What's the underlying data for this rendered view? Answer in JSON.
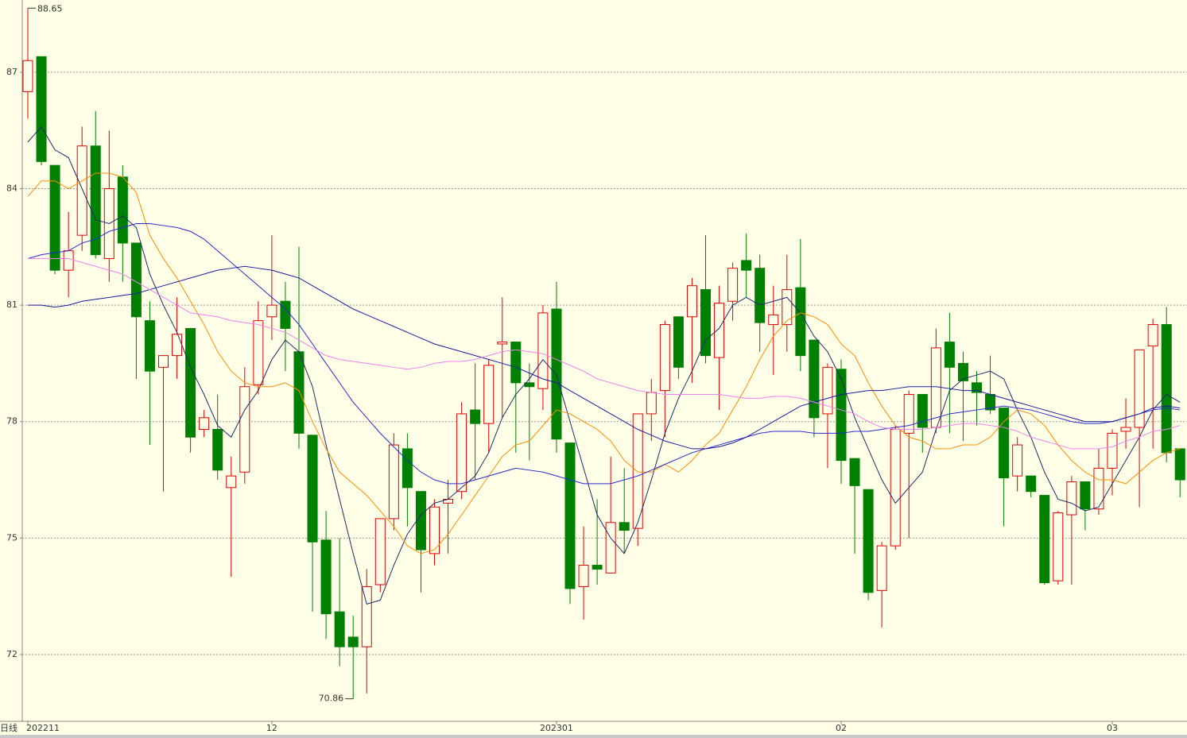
{
  "chart_data": {
    "type": "candlestick",
    "period_label": "日线",
    "categories": [
      "202211",
      null,
      null,
      null,
      null,
      null,
      null,
      null,
      null,
      null,
      null,
      null,
      null,
      null,
      null,
      null,
      null,
      null,
      "12",
      null,
      null,
      null,
      null,
      null,
      null,
      null,
      null,
      null,
      null,
      null,
      null,
      null,
      null,
      null,
      null,
      null,
      null,
      null,
      null,
      "202301",
      null,
      null,
      null,
      null,
      null,
      null,
      null,
      null,
      null,
      null,
      null,
      null,
      null,
      null,
      null,
      null,
      null,
      null,
      null,
      null,
      "02",
      null,
      null,
      null,
      null,
      null,
      null,
      null,
      null,
      null,
      null,
      null,
      null,
      null,
      null,
      null,
      null,
      null,
      null,
      null,
      "03",
      null,
      null,
      null,
      null,
      null
    ],
    "open": [
      86.5,
      87.4,
      84.6,
      81.9,
      82.8,
      85.1,
      82.2,
      84.3,
      82.6,
      80.6,
      79.4,
      79.7,
      80.4,
      77.8,
      77.8,
      76.3,
      76.7,
      78.95,
      80.7,
      81.1,
      79.8,
      77.65,
      74.95,
      73.1,
      72.45,
      72.2,
      73.8,
      75.5,
      77.3,
      76.2,
      74.6,
      75.9,
      76.2,
      78.3,
      77.95,
      80.0,
      80.05,
      79.0,
      78.85,
      80.9,
      77.45,
      73.75,
      74.3,
      74.1,
      75.4,
      75.25,
      78.2,
      78.8,
      80.7,
      80.7,
      81.4,
      79.65,
      81.1,
      82.15,
      81.95,
      80.5,
      80.5,
      81.45,
      80.1,
      78.2,
      79.35,
      77.05,
      76.25,
      73.65,
      74.8,
      77.7,
      78.7,
      77.85,
      80.05,
      79.5,
      79.0,
      78.7,
      78.35,
      76.6,
      76.6,
      76.1,
      73.9,
      75.6,
      76.45,
      75.75,
      76.8,
      77.75,
      77.85,
      79.95,
      80.5,
      77.3
    ],
    "high": [
      88.65,
      87.4,
      84.6,
      83.4,
      85.6,
      86.0,
      85.5,
      84.6,
      82.6,
      81.1,
      79.7,
      81.2,
      80.4,
      78.3,
      78.7,
      77.1,
      79.4,
      81.1,
      82.8,
      81.6,
      82.5,
      77.65,
      75.7,
      75.0,
      73.0,
      74.2,
      75.5,
      77.7,
      77.7,
      76.2,
      76.0,
      76.5,
      78.5,
      79.5,
      79.6,
      81.2,
      80.05,
      79.5,
      81.0,
      81.6,
      77.45,
      75.3,
      76.0,
      77.1,
      76.8,
      78.2,
      79.1,
      80.6,
      80.7,
      81.7,
      82.8,
      81.5,
      82.1,
      82.85,
      82.3,
      81.5,
      82.3,
      82.7,
      80.1,
      79.5,
      79.6,
      77.05,
      76.25,
      74.9,
      77.9,
      78.8,
      78.7,
      80.4,
      80.8,
      79.8,
      79.3,
      79.7,
      78.35,
      77.6,
      76.6,
      76.1,
      75.7,
      76.6,
      76.45,
      77.3,
      77.8,
      78.6,
      79.85,
      80.65,
      80.95,
      77.3
    ],
    "low": [
      85.8,
      84.6,
      81.8,
      81.2,
      82.4,
      82.2,
      81.6,
      81.6,
      79.1,
      77.4,
      76.2,
      79.1,
      77.2,
      77.6,
      76.5,
      74.0,
      76.4,
      78.7,
      80.1,
      79.3,
      77.3,
      73.1,
      72.4,
      71.7,
      70.86,
      71.0,
      73.6,
      75.2,
      75.3,
      73.6,
      74.3,
      74.6,
      76.0,
      76.5,
      77.2,
      78.1,
      77.2,
      77.0,
      78.3,
      77.2,
      73.3,
      72.9,
      73.8,
      74.1,
      74.6,
      74.8,
      77.5,
      77.6,
      79.1,
      79.0,
      79.5,
      78.3,
      80.6,
      81.2,
      79.8,
      79.2,
      79.8,
      79.3,
      77.6,
      76.8,
      76.4,
      74.6,
      73.4,
      72.7,
      74.7,
      75.0,
      77.2,
      77.7,
      77.7,
      77.5,
      77.9,
      78.2,
      75.3,
      76.2,
      76.05,
      73.8,
      73.8,
      73.8,
      75.2,
      75.6,
      76.1,
      77.3,
      75.8,
      77.3,
      76.95,
      76.05
    ],
    "close": [
      87.3,
      84.7,
      81.9,
      82.4,
      85.1,
      82.3,
      84.0,
      82.6,
      80.7,
      79.3,
      79.7,
      80.25,
      77.6,
      78.1,
      76.75,
      76.6,
      78.9,
      80.6,
      81.0,
      80.4,
      77.7,
      74.9,
      73.05,
      72.2,
      72.2,
      73.75,
      75.5,
      77.4,
      76.3,
      74.7,
      75.8,
      76.0,
      78.2,
      77.95,
      79.45,
      80.05,
      79.0,
      78.9,
      80.8,
      77.55,
      73.7,
      74.3,
      74.2,
      75.4,
      75.2,
      78.2,
      78.75,
      80.5,
      79.4,
      81.5,
      79.7,
      81.05,
      81.95,
      81.9,
      80.55,
      80.75,
      81.4,
      79.7,
      78.1,
      79.4,
      77.0,
      76.35,
      73.6,
      74.8,
      77.8,
      78.7,
      77.85,
      79.9,
      79.4,
      79.05,
      78.75,
      78.3,
      76.55,
      77.4,
      76.2,
      73.85,
      75.65,
      76.45,
      75.75,
      76.8,
      77.7,
      77.85,
      79.85,
      80.5,
      77.2,
      76.5
    ],
    "up_color": "#e00000",
    "down_color": "#008000",
    "series": [
      {
        "color": "#1f2a6b",
        "values": [
          85.2,
          85.6,
          85.0,
          84.8,
          84.0,
          83.2,
          83.1,
          83.3,
          83.0,
          81.8,
          81.0,
          80.3,
          79.4,
          78.7,
          77.9,
          77.6,
          78.3,
          78.8,
          79.6,
          80.1,
          79.8,
          78.9,
          77.4,
          76.0,
          74.6,
          73.3,
          73.4,
          74.3,
          75.1,
          75.6,
          75.9,
          76.0,
          76.3,
          76.6,
          77.2,
          78.1,
          78.7,
          79.1,
          79.6,
          79.2,
          78.0,
          76.8,
          75.6,
          75.0,
          74.6,
          75.4,
          76.5,
          77.7,
          78.6,
          79.3,
          80.1,
          80.4,
          81.0,
          81.2,
          81.0,
          81.1,
          81.2,
          80.8,
          80.2,
          79.8,
          79.1,
          78.1,
          77.3,
          76.5,
          75.9,
          76.3,
          76.7,
          77.8,
          78.8,
          79.1,
          79.2,
          79.3,
          79.1,
          78.3,
          77.6,
          76.7,
          76.0,
          75.9,
          75.7,
          75.8,
          76.4,
          77.0,
          77.6,
          78.3,
          78.7,
          78.5
        ]
      },
      {
        "color": "#ff8c00",
        "values": [
          83.8,
          84.2,
          84.2,
          84.0,
          84.2,
          84.4,
          84.4,
          84.3,
          83.9,
          82.8,
          82.2,
          81.7,
          81.1,
          80.5,
          79.8,
          79.3,
          79.0,
          78.9,
          78.9,
          79.0,
          78.8,
          78.0,
          77.3,
          76.7,
          76.4,
          76.1,
          75.7,
          75.3,
          74.8,
          74.6,
          74.7,
          75.1,
          75.6,
          76.1,
          76.6,
          77.1,
          77.4,
          77.5,
          77.9,
          78.3,
          78.2,
          78.0,
          77.8,
          77.5,
          77.0,
          76.7,
          76.7,
          76.9,
          76.7,
          77.0,
          77.4,
          77.7,
          78.3,
          78.9,
          79.6,
          80.2,
          80.6,
          80.8,
          80.7,
          80.5,
          80.0,
          79.7,
          79.0,
          78.4,
          77.9,
          77.6,
          77.5,
          77.3,
          77.3,
          77.4,
          77.4,
          77.6,
          78.0,
          78.3,
          78.2,
          77.9,
          77.4,
          77.0,
          76.7,
          76.5,
          76.5,
          76.4,
          76.7,
          77.0,
          77.2,
          77.3
        ]
      },
      {
        "color": "#2a2ad0",
        "values": [
          82.2,
          82.3,
          82.35,
          82.4,
          82.6,
          82.7,
          82.9,
          83.0,
          83.1,
          83.1,
          83.05,
          83.0,
          82.9,
          82.7,
          82.4,
          82.1,
          81.8,
          81.5,
          81.2,
          80.9,
          80.5,
          80.0,
          79.5,
          79.0,
          78.5,
          78.1,
          77.7,
          77.35,
          77.0,
          76.7,
          76.5,
          76.4,
          76.4,
          76.5,
          76.6,
          76.7,
          76.8,
          76.75,
          76.7,
          76.6,
          76.5,
          76.4,
          76.4,
          76.4,
          76.5,
          76.6,
          76.75,
          76.9,
          77.05,
          77.2,
          77.3,
          77.4,
          77.5,
          77.6,
          77.7,
          77.75,
          77.75,
          77.75,
          77.7,
          77.7,
          77.7,
          77.75,
          77.75,
          77.8,
          77.85,
          77.9,
          78.0,
          78.1,
          78.2,
          78.25,
          78.3,
          78.35,
          78.4,
          78.35,
          78.3,
          78.2,
          78.1,
          78.0,
          77.95,
          77.95,
          78.0,
          78.1,
          78.2,
          78.3,
          78.35,
          78.3
        ]
      },
      {
        "color": "#1a1aa0",
        "values": [
          81.0,
          81.0,
          80.95,
          81.0,
          81.1,
          81.15,
          81.2,
          81.25,
          81.3,
          81.4,
          81.5,
          81.6,
          81.7,
          81.8,
          81.9,
          81.95,
          82.0,
          81.95,
          81.9,
          81.8,
          81.7,
          81.5,
          81.3,
          81.1,
          80.9,
          80.75,
          80.6,
          80.45,
          80.3,
          80.15,
          80.0,
          79.9,
          79.8,
          79.7,
          79.6,
          79.5,
          79.4,
          79.25,
          79.1,
          79.0,
          78.8,
          78.6,
          78.4,
          78.2,
          78.0,
          77.8,
          77.65,
          77.5,
          77.4,
          77.3,
          77.3,
          77.35,
          77.45,
          77.6,
          77.8,
          78.0,
          78.2,
          78.4,
          78.5,
          78.6,
          78.7,
          78.75,
          78.8,
          78.8,
          78.85,
          78.9,
          78.9,
          78.9,
          78.85,
          78.8,
          78.8,
          78.7,
          78.6,
          78.5,
          78.4,
          78.3,
          78.2,
          78.1,
          78.0,
          78.0,
          78.0,
          78.1,
          78.2,
          78.35,
          78.4,
          78.35
        ]
      },
      {
        "color": "#ee82ee",
        "values": [
          82.2,
          82.2,
          82.2,
          82.2,
          82.1,
          82.0,
          81.9,
          81.8,
          81.6,
          81.4,
          81.2,
          81.0,
          80.8,
          80.75,
          80.7,
          80.6,
          80.55,
          80.5,
          80.4,
          80.3,
          80.1,
          79.9,
          79.7,
          79.6,
          79.55,
          79.5,
          79.45,
          79.4,
          79.35,
          79.4,
          79.5,
          79.55,
          79.55,
          79.6,
          79.7,
          79.8,
          79.85,
          79.8,
          79.75,
          79.6,
          79.45,
          79.3,
          79.1,
          79.0,
          78.9,
          78.8,
          78.75,
          78.7,
          78.7,
          78.7,
          78.7,
          78.7,
          78.65,
          78.6,
          78.6,
          78.65,
          78.65,
          78.6,
          78.5,
          78.4,
          78.3,
          78.2,
          78.0,
          77.85,
          77.8,
          77.8,
          77.8,
          77.85,
          77.9,
          77.95,
          77.95,
          77.9,
          77.85,
          77.75,
          77.6,
          77.5,
          77.4,
          77.3,
          77.3,
          77.3,
          77.35,
          77.5,
          77.6,
          77.75,
          77.8,
          77.9
        ]
      }
    ],
    "max_label": 88.65,
    "min_label": 70.86,
    "ylim": [
      70.28,
      88.86
    ],
    "yticks": [
      72,
      75,
      78,
      81,
      84,
      87
    ],
    "grid": true
  }
}
